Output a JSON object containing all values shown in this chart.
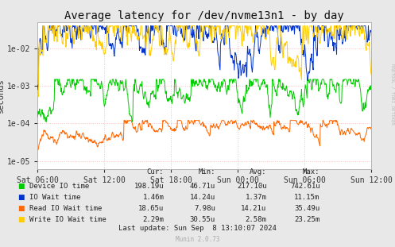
{
  "title": "Average latency for /dev/nvme13n1 - by day",
  "ylabel": "seconds",
  "xlabel_ticks": [
    "Sat 06:00",
    "Sat 12:00",
    "Sat 18:00",
    "Sun 00:00",
    "Sun 06:00",
    "Sun 12:00"
  ],
  "ytick_values": [
    1e-05,
    0.0001,
    0.001,
    0.01
  ],
  "ytick_labels": [
    "1e-05",
    "1e-04",
    "1e-03",
    "1e-02"
  ],
  "ylim_low": 6e-06,
  "ylim_high": 0.05,
  "background_color": "#e8e8e8",
  "plot_bg_color": "#ffffff",
  "grid_h_color": "#ffbbbb",
  "grid_v_color": "#ffbbbb",
  "colors": {
    "device_io": "#00cc00",
    "io_wait": "#0033cc",
    "read_io_wait": "#ff6600",
    "write_io_wait": "#ffcc00"
  },
  "legend": [
    {
      "label": "Device IO time",
      "color": "#00cc00"
    },
    {
      "label": "IO Wait time",
      "color": "#0033cc"
    },
    {
      "label": "Read IO Wait time",
      "color": "#ff6600"
    },
    {
      "label": "Write IO Wait time",
      "color": "#ffcc00"
    }
  ],
  "stats_header": [
    "Cur:",
    "Min:",
    "Avg:",
    "Max:"
  ],
  "stats": [
    [
      "198.19u",
      "46.71u",
      "217.10u",
      "742.61u"
    ],
    [
      "1.46m",
      "14.24u",
      "1.37m",
      "11.15m"
    ],
    [
      "18.65u",
      "7.98u",
      "14.21u",
      "35.49u"
    ],
    [
      "2.29m",
      "30.55u",
      "2.58m",
      "23.25m"
    ]
  ],
  "last_update": "Last update: Sun Sep  8 13:10:07 2024",
  "rrdtool_label": "RRDTOOL / TOBI OETIKER",
  "munin_label": "Munin 2.0.73",
  "title_fontsize": 10,
  "axis_fontsize": 7,
  "table_fontsize": 6.5
}
